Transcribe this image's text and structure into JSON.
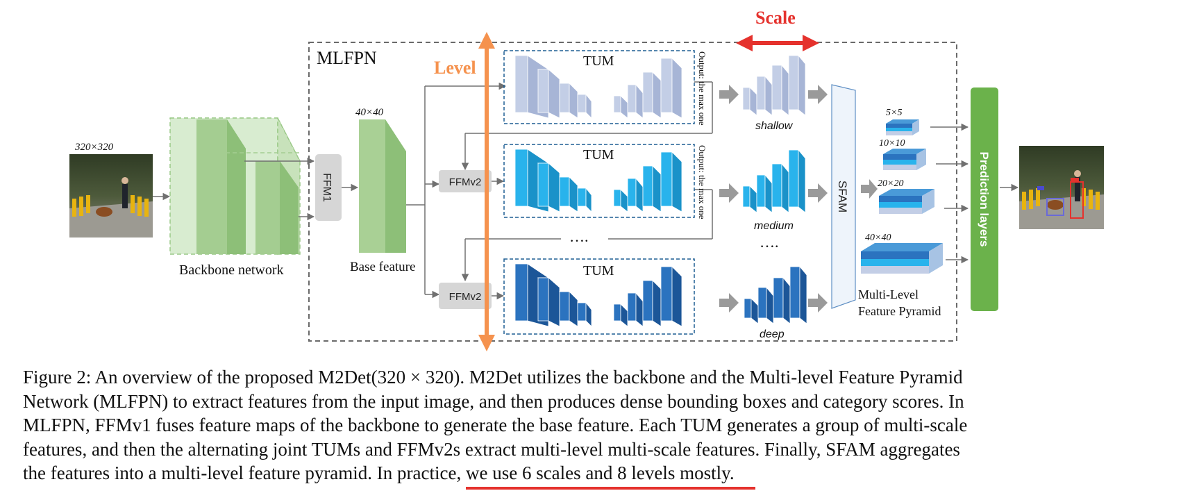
{
  "figure": {
    "mlfpn_label": "MLFPN",
    "input": {
      "size_label": "320×320"
    },
    "backbone_label": "Backbone network",
    "ffm1_label": "FFM1",
    "base_feature": {
      "size_label": "40×40",
      "label": "Base feature"
    },
    "level_label": "Level",
    "scale_label": "Scale",
    "tum_label": "TUM",
    "ffmv2_label": "FFMv2",
    "output_note": "Output: the max one",
    "ellipsis": "….",
    "levels": [
      "shallow",
      "medium",
      "deep"
    ],
    "sfam_label": "SFAM",
    "pyramid": {
      "sizes": [
        "5×5",
        "10×10",
        "20×20",
        "40×40"
      ],
      "label_line1": "Multi-Level",
      "label_line2": "Feature Pyramid"
    },
    "prediction_label": "Prediction layers",
    "colors": {
      "accent_orange": "#f5924e",
      "scale_red": "#e5322d",
      "backbone_green": "#9ac987",
      "prediction_green": "#6bb24b",
      "tum_shallow": "#c3cee6",
      "tum_medium": "#29b3ec",
      "tum_deep": "#2b73bf"
    }
  },
  "caption": {
    "line1": "Figure 2: An overview of the proposed M2Det(320 × 320). M2Det utilizes the backbone and the Multi-level Feature Pyramid",
    "line2": "Network (MLFPN) to extract features from the input image, and then produces dense bounding boxes and category scores. In",
    "line3": "MLFPN, FFMv1 fuses feature maps of the backbone to generate the base feature. Each TUM generates a group of multi-scale",
    "line4": "features, and then the alternating joint TUMs and FFMv2s extract multi-level multi-scale features. Finally, SFAM aggregates",
    "line5_start": "the features into a multi-level feature pyramid. In practice, ",
    "line5_highlight": "we use 6 scales and 8 levels mostly."
  }
}
